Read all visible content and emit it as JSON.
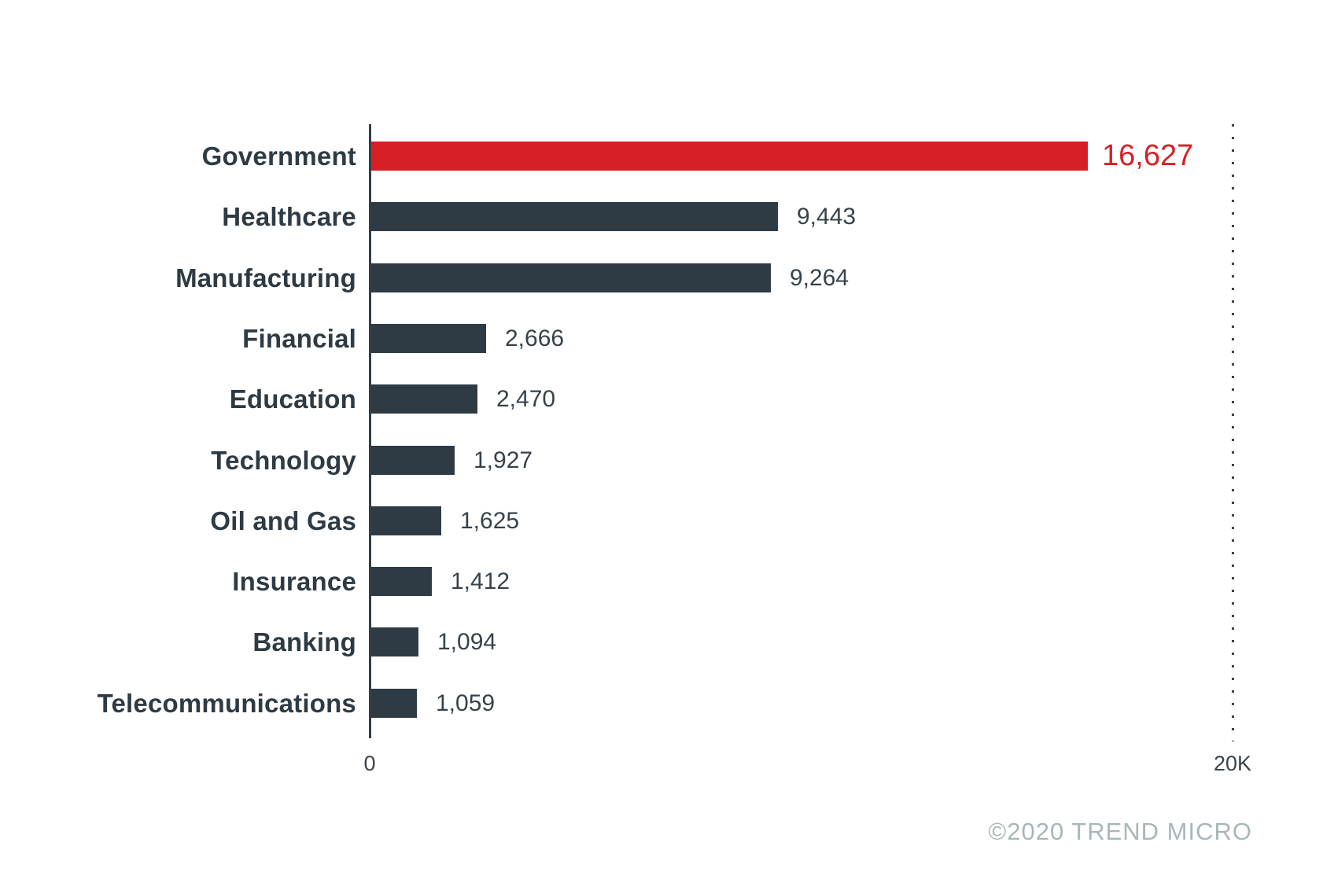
{
  "chart_data": {
    "type": "bar",
    "orientation": "horizontal",
    "title": "",
    "categories": [
      "Government",
      "Healthcare",
      "Manufacturing",
      "Financial",
      "Education",
      "Technology",
      "Oil and Gas",
      "Insurance",
      "Banking",
      "Telecommunications"
    ],
    "values": [
      16627,
      9443,
      9264,
      2666,
      2470,
      1927,
      1625,
      1412,
      1094,
      1059
    ],
    "value_labels": [
      "16,627",
      "9,443",
      "9,264",
      "2,666",
      "2,470",
      "1,927",
      "1,625",
      "1,412",
      "1,094",
      "1,059"
    ],
    "highlight_category": "Government",
    "highlight_index": 0,
    "xlim": [
      0,
      20000
    ],
    "x_ticks": [
      "0",
      "20K"
    ],
    "grid": "single dotted vertical line at 20K",
    "legend": "none",
    "colors": {
      "bar": "#2f3b44",
      "highlight_bar": "#d71f26",
      "category_label": "#2f3b44",
      "value_label": "#37424a",
      "highlight_value_label": "#d71f26",
      "axis": "#343e47",
      "gridline_dots": "#39424a",
      "tick_label": "#39434b"
    }
  },
  "footer": {
    "copyright": "©2020 TREND MICRO",
    "color": "#a9b6ba"
  }
}
